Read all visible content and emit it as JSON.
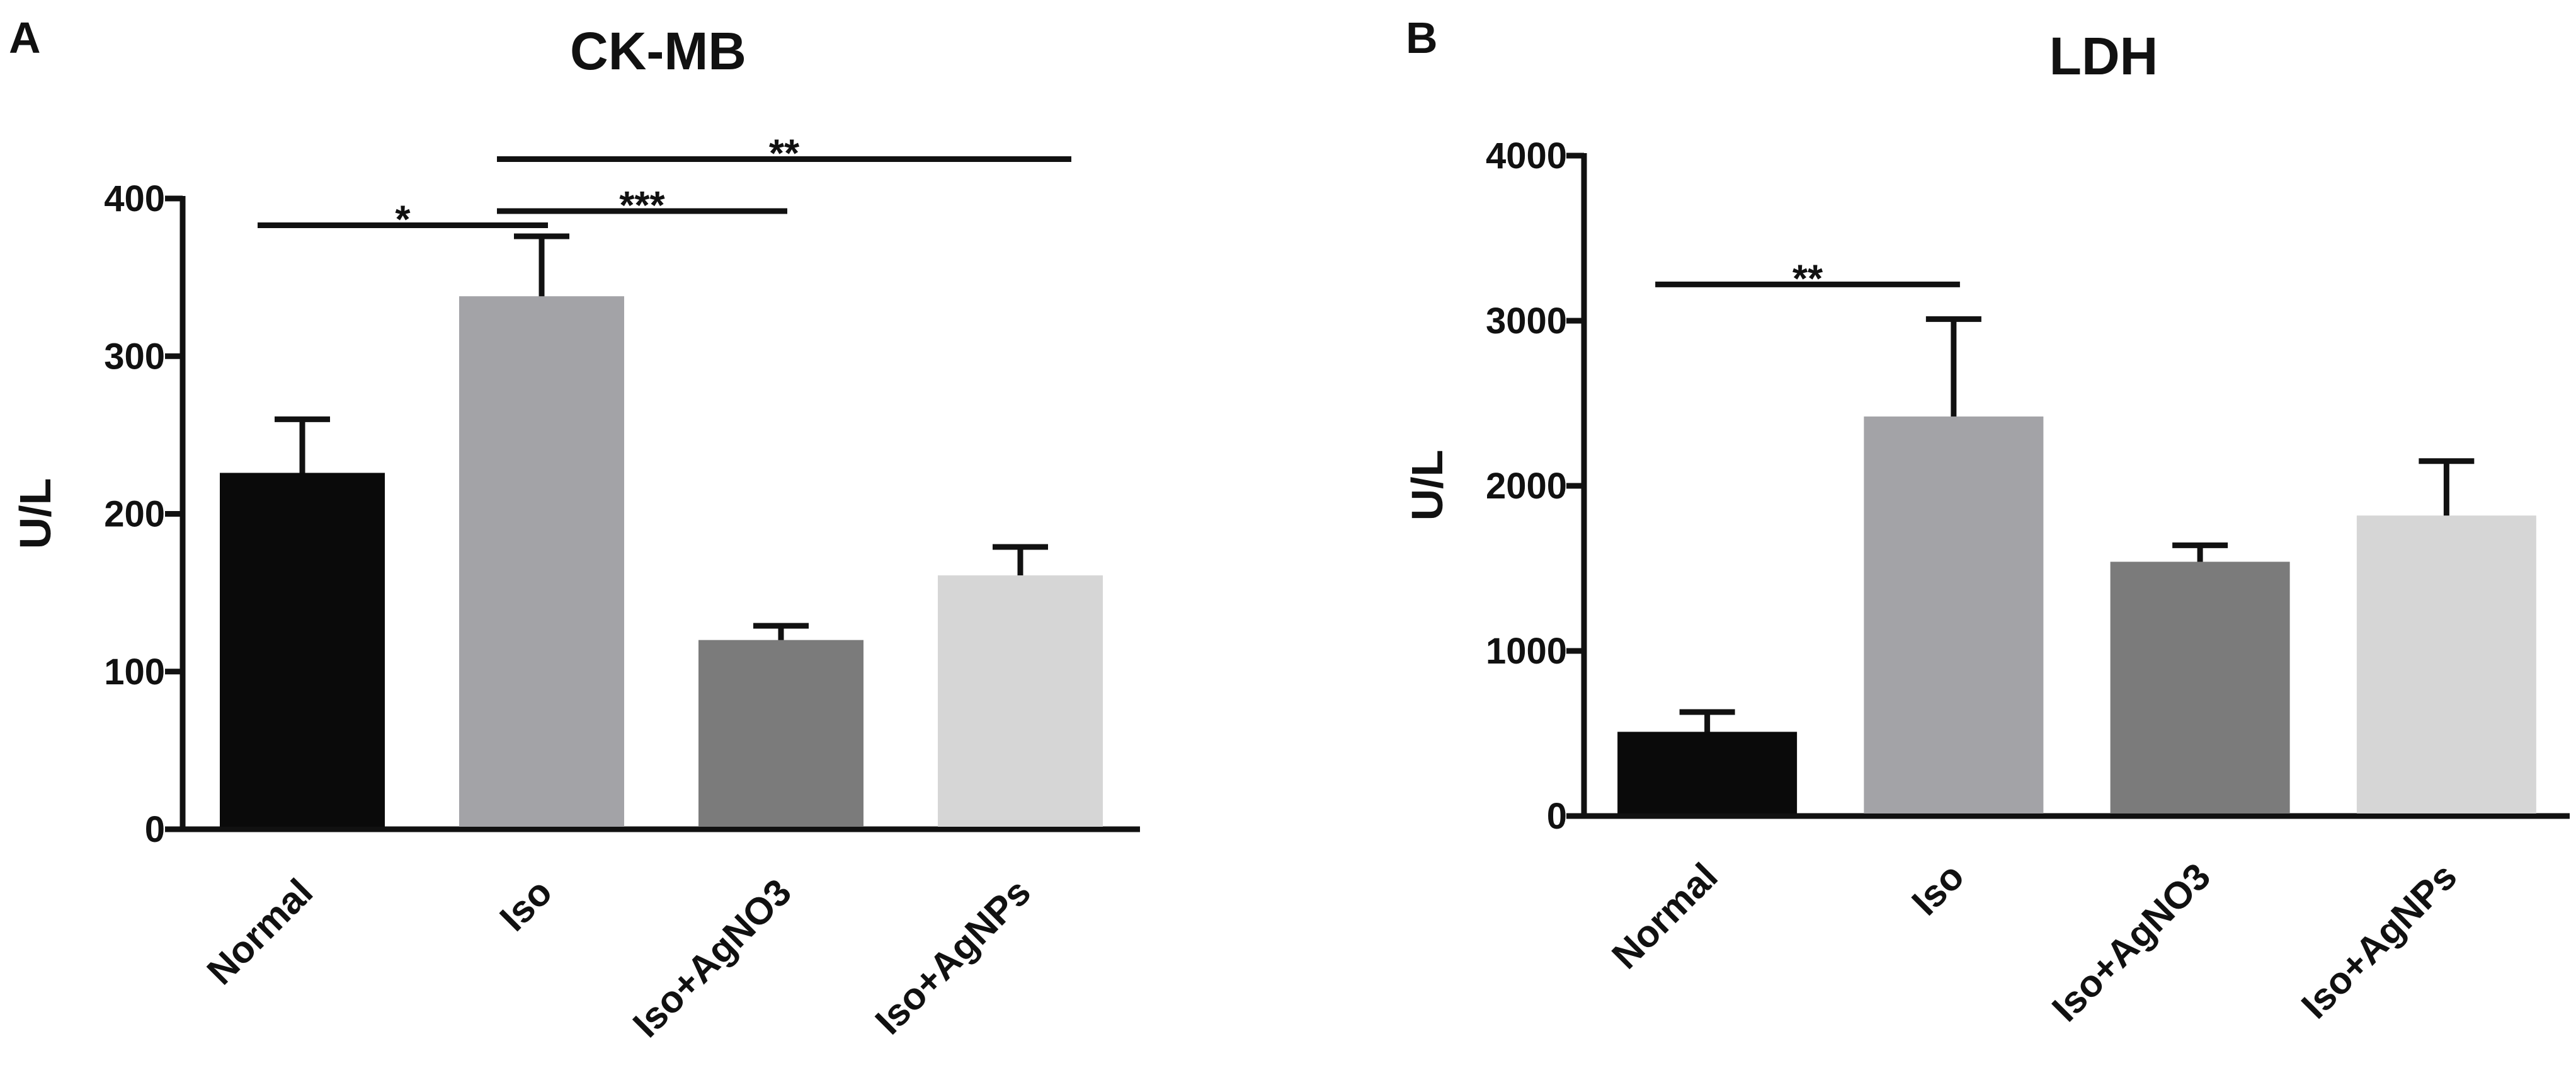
{
  "chart_data": [
    {
      "panel": "A",
      "type": "bar",
      "title": "CK-MB",
      "ylabel": "U/L",
      "xlabel": "",
      "ylim": [
        0,
        400
      ],
      "yticks": [
        0,
        100,
        200,
        300,
        400
      ],
      "categories": [
        "Normal",
        "Iso",
        "Iso+AgNO3",
        "Iso+AgNPs"
      ],
      "values": [
        226,
        338,
        120,
        161
      ],
      "errors": [
        34,
        38,
        9,
        18
      ],
      "bar_colors": [
        "#0a0a0a",
        "#a3a3a7",
        "#7b7b7b",
        "#d6d6d6"
      ],
      "grid": false,
      "significance": [
        {
          "from": 0,
          "to": 1,
          "label": "*",
          "y": 383
        },
        {
          "from": 1,
          "to": 2,
          "label": "***",
          "y": 392
        },
        {
          "from": 1,
          "to": 3,
          "label": "**",
          "y": 425
        }
      ]
    },
    {
      "panel": "B",
      "type": "bar",
      "title": "LDH",
      "ylabel": "U/L",
      "xlabel": "",
      "ylim": [
        0,
        4000
      ],
      "yticks": [
        0,
        1000,
        2000,
        3000,
        4000
      ],
      "categories": [
        "Normal",
        "Iso",
        "Iso+AgNO3",
        "Iso+AgNPs"
      ],
      "values": [
        510,
        2420,
        1540,
        1820
      ],
      "errors": [
        120,
        590,
        100,
        330
      ],
      "bar_colors": [
        "#0a0a0a",
        "#a3a3a7",
        "#7b7b7b",
        "#d6d6d6"
      ],
      "grid": false,
      "significance": [
        {
          "from": 0,
          "to": 1,
          "label": "**",
          "y": 3220
        }
      ]
    }
  ]
}
